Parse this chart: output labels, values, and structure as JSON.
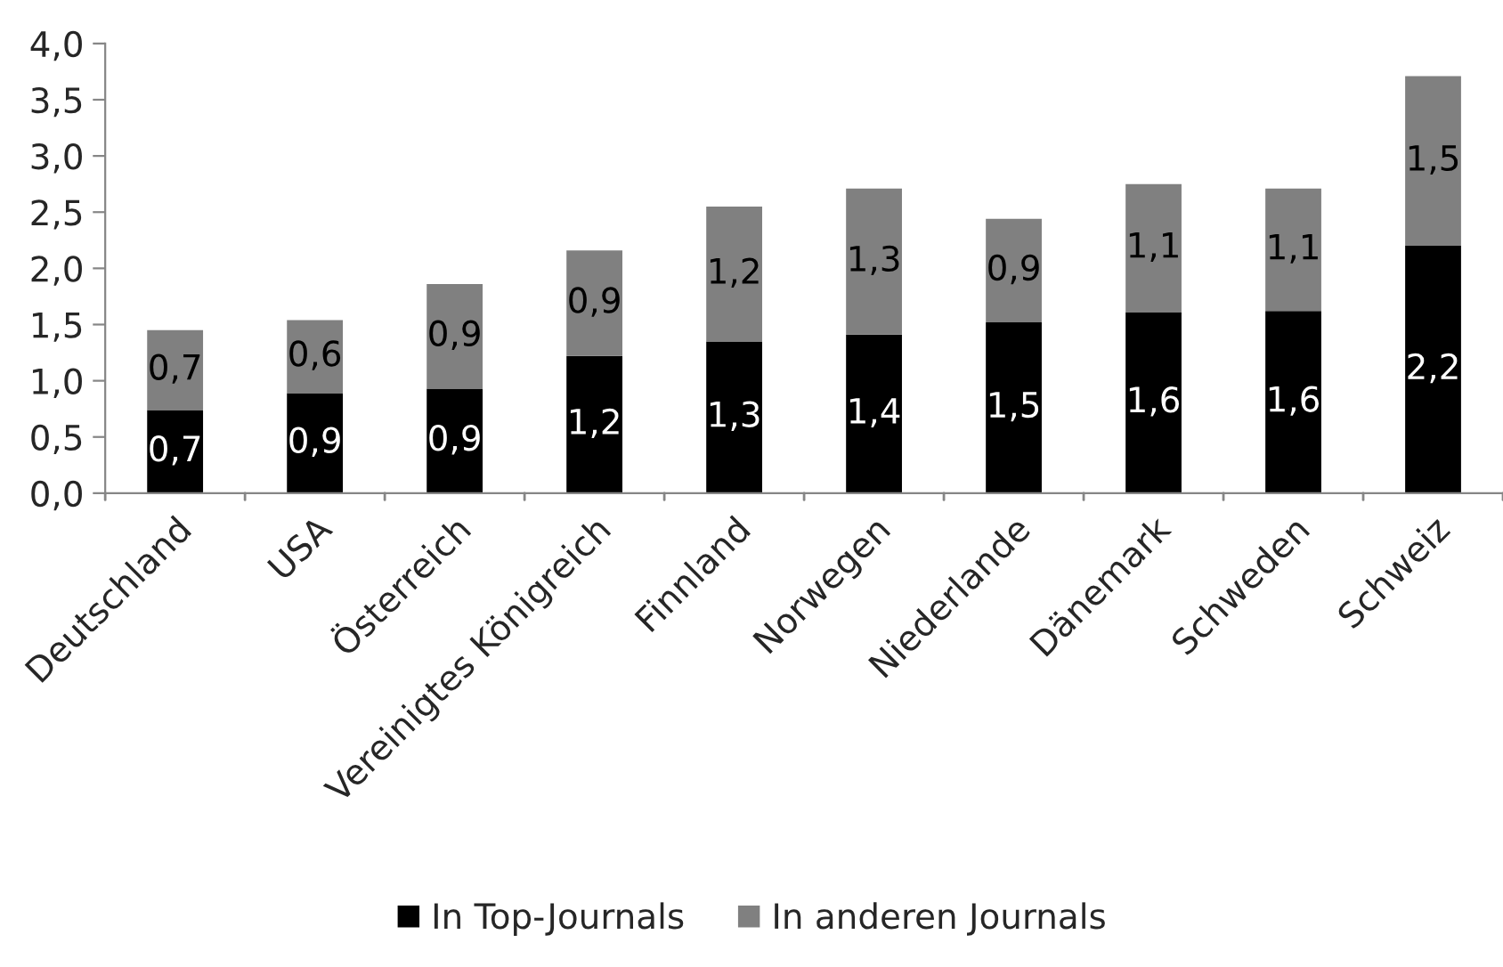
{
  "chart_data": {
    "type": "bar",
    "stacked": true,
    "categories": [
      "Deutschland",
      "USA",
      "Österreich",
      "Vereinigtes Königreich",
      "Finnland",
      "Norwegen",
      "Niederlande",
      "Dänemark",
      "Schweden",
      "Schweiz"
    ],
    "series": [
      {
        "name": "In Top-Journals",
        "color": "#000000",
        "values": [
          0.74,
          0.89,
          0.93,
          1.22,
          1.35,
          1.41,
          1.52,
          1.61,
          1.62,
          2.2
        ],
        "value_labels": [
          "0,7",
          "0,9",
          "0,9",
          "1,2",
          "1,3",
          "1,4",
          "1,5",
          "1,6",
          "1,6",
          "2,2"
        ]
      },
      {
        "name": "In anderen Journals",
        "color": "#808080",
        "values": [
          0.71,
          0.65,
          0.93,
          0.94,
          1.2,
          1.3,
          0.92,
          1.14,
          1.09,
          1.51
        ],
        "value_labels": [
          "0,7",
          "0,6",
          "0,9",
          "0,9",
          "1,2",
          "1,3",
          "0,9",
          "1,1",
          "1,1",
          "1,5"
        ]
      }
    ],
    "ylim": [
      0,
      4
    ],
    "yticks": [
      {
        "value": 0,
        "label": "0,0"
      },
      {
        "value": 0.5,
        "label": "0,5"
      },
      {
        "value": 1,
        "label": "1,0"
      },
      {
        "value": 1.5,
        "label": "1,5"
      },
      {
        "value": 2,
        "label": "2,0"
      },
      {
        "value": 2.5,
        "label": "2,5"
      },
      {
        "value": 3,
        "label": "3,0"
      },
      {
        "value": 3.5,
        "label": "3,5"
      },
      {
        "value": 4,
        "label": "4,0"
      }
    ],
    "grid": false,
    "legend": "bottom"
  }
}
